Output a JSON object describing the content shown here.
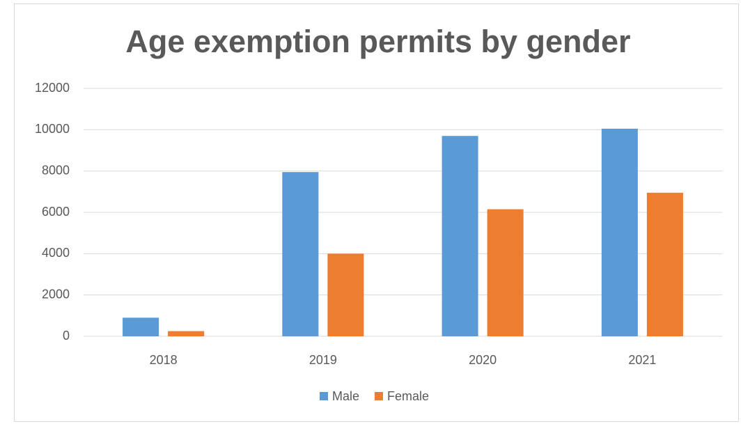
{
  "chart_data": {
    "type": "bar",
    "title": "Age exemption permits by gender",
    "categories": [
      "2018",
      "2019",
      "2020",
      "2021"
    ],
    "series": [
      {
        "name": "Male",
        "color": "#5b9bd5",
        "values": [
          900,
          7950,
          9700,
          10050
        ]
      },
      {
        "name": "Female",
        "color": "#ed7d31",
        "values": [
          250,
          4000,
          6150,
          6950
        ]
      }
    ],
    "ylim": [
      0,
      12000
    ],
    "yticks": [
      0,
      2000,
      4000,
      6000,
      8000,
      10000,
      12000
    ],
    "grid": true,
    "legend": "bottom"
  }
}
